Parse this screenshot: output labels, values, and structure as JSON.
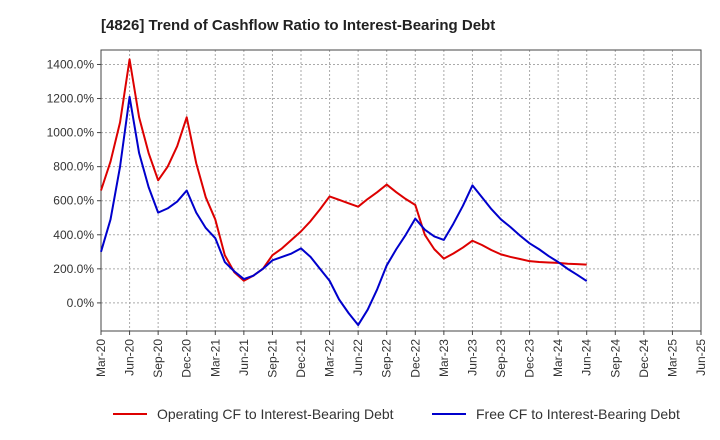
{
  "chart_data": {
    "type": "line",
    "title": "[4826]  Trend of Cashflow Ratio to Interest-Bearing Debt",
    "xlabel": "",
    "ylabel": "",
    "x_tick_labels": [
      "Mar-20",
      "Jun-20",
      "Sep-20",
      "Dec-20",
      "Mar-21",
      "Jun-21",
      "Sep-21",
      "Dec-21",
      "Mar-22",
      "Jun-22",
      "Sep-22",
      "Dec-22",
      "Mar-23",
      "Jun-23",
      "Sep-23",
      "Dec-23",
      "Mar-24",
      "Jun-24",
      "Sep-24",
      "Dec-24",
      "Mar-25",
      "Jun-25"
    ],
    "y_tick_labels": [
      "0.0%",
      "200.0%",
      "400.0%",
      "600.0%",
      "800.0%",
      "1000.0%",
      "1200.0%",
      "1400.0%"
    ],
    "y_ticks": [
      0,
      200,
      400,
      600,
      800,
      1000,
      1200,
      1400
    ],
    "ylim": [
      -165,
      1485
    ],
    "x_unit": "months since Mar-20",
    "grid": true,
    "legend_position": "bottom",
    "series": [
      {
        "name": "Operating CF to Interest-Bearing Debt",
        "color": "#dd0000",
        "points": [
          [
            0,
            660
          ],
          [
            1,
            830
          ],
          [
            2,
            1060
          ],
          [
            3,
            1430
          ],
          [
            4,
            1090
          ],
          [
            5,
            880
          ],
          [
            6,
            720
          ],
          [
            7,
            800
          ],
          [
            8,
            920
          ],
          [
            9,
            1090
          ],
          [
            10,
            820
          ],
          [
            11,
            620
          ],
          [
            12,
            490
          ],
          [
            13,
            280
          ],
          [
            14,
            180
          ],
          [
            15,
            130
          ],
          [
            16,
            160
          ],
          [
            17,
            200
          ],
          [
            18,
            280
          ],
          [
            19,
            320
          ],
          [
            20,
            370
          ],
          [
            21,
            420
          ],
          [
            22,
            480
          ],
          [
            23,
            550
          ],
          [
            24,
            625
          ],
          [
            25,
            605
          ],
          [
            26,
            585
          ],
          [
            27,
            565
          ],
          [
            28,
            610
          ],
          [
            29,
            650
          ],
          [
            30,
            695
          ],
          [
            31,
            650
          ],
          [
            32,
            610
          ],
          [
            33,
            575
          ],
          [
            34,
            400
          ],
          [
            35,
            315
          ],
          [
            36,
            260
          ],
          [
            37,
            290
          ],
          [
            38,
            325
          ],
          [
            39,
            365
          ],
          [
            40,
            340
          ],
          [
            41,
            310
          ],
          [
            42,
            285
          ],
          [
            43,
            270
          ],
          [
            44,
            258
          ],
          [
            45,
            245
          ],
          [
            46,
            240
          ],
          [
            47,
            237
          ],
          [
            48,
            235
          ],
          [
            49,
            230
          ],
          [
            50,
            228
          ],
          [
            51,
            225
          ]
        ]
      },
      {
        "name": "Free CF to Interest-Bearing Debt",
        "color": "#0000cc",
        "points": [
          [
            0,
            300
          ],
          [
            1,
            490
          ],
          [
            2,
            800
          ],
          [
            3,
            1210
          ],
          [
            4,
            880
          ],
          [
            5,
            680
          ],
          [
            6,
            530
          ],
          [
            7,
            555
          ],
          [
            8,
            595
          ],
          [
            9,
            660
          ],
          [
            10,
            530
          ],
          [
            11,
            440
          ],
          [
            12,
            380
          ],
          [
            13,
            240
          ],
          [
            14,
            185
          ],
          [
            15,
            140
          ],
          [
            16,
            160
          ],
          [
            17,
            200
          ],
          [
            18,
            250
          ],
          [
            19,
            270
          ],
          [
            20,
            290
          ],
          [
            21,
            320
          ],
          [
            22,
            270
          ],
          [
            23,
            200
          ],
          [
            24,
            130
          ],
          [
            25,
            20
          ],
          [
            26,
            -60
          ],
          [
            27,
            -130
          ],
          [
            28,
            -40
          ],
          [
            29,
            80
          ],
          [
            30,
            220
          ],
          [
            31,
            315
          ],
          [
            32,
            400
          ],
          [
            33,
            495
          ],
          [
            34,
            430
          ],
          [
            35,
            390
          ],
          [
            36,
            370
          ],
          [
            37,
            465
          ],
          [
            38,
            570
          ],
          [
            39,
            690
          ],
          [
            40,
            620
          ],
          [
            41,
            550
          ],
          [
            42,
            490
          ],
          [
            43,
            445
          ],
          [
            44,
            395
          ],
          [
            45,
            350
          ],
          [
            46,
            315
          ],
          [
            47,
            275
          ],
          [
            48,
            240
          ],
          [
            49,
            200
          ],
          [
            50,
            165
          ],
          [
            51,
            128
          ]
        ]
      }
    ]
  }
}
